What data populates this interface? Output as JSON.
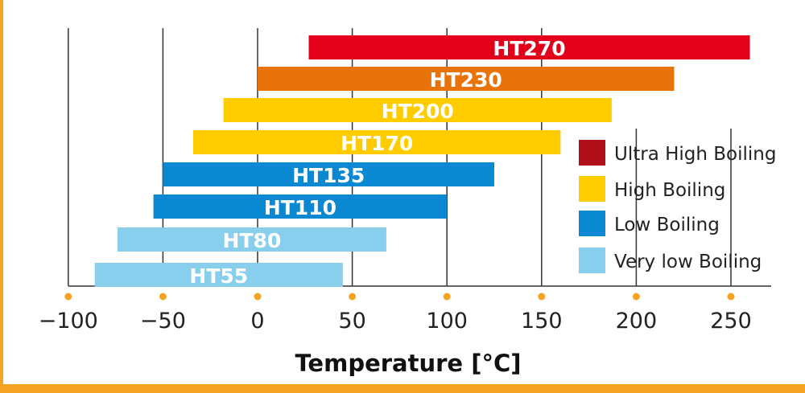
{
  "chart_data": {
    "type": "bar",
    "orientation": "horizontal-range",
    "title": "",
    "xlabel": "Temperature [°C]",
    "ylabel": "",
    "xlim": [
      -100,
      270
    ],
    "xticks": [
      -100,
      -50,
      0,
      50,
      100,
      150,
      200,
      250
    ],
    "xtick_labels": [
      "−100",
      "−50",
      "0",
      "50",
      "100",
      "150",
      "200",
      "250"
    ],
    "grid": "vertical",
    "legend_position": "right",
    "bars": [
      {
        "label": "HT270",
        "start": 27,
        "end": 260,
        "category": "Ultra High Boiling",
        "color": "#e2001a"
      },
      {
        "label": "HT230",
        "start": 0,
        "end": 220,
        "category": "Ultra High Boiling",
        "color": "#e8730a"
      },
      {
        "label": "HT200",
        "start": -18,
        "end": 187,
        "category": "High Boiling",
        "color": "#ffcc00"
      },
      {
        "label": "HT170",
        "start": -34,
        "end": 160,
        "category": "High Boiling",
        "color": "#ffcc00"
      },
      {
        "label": "HT135",
        "start": -50,
        "end": 125,
        "category": "Low Boiling",
        "color": "#0a88d2"
      },
      {
        "label": "HT110",
        "start": -55,
        "end": 100,
        "category": "Low Boiling",
        "color": "#0a88d2"
      },
      {
        "label": "HT80",
        "start": -74,
        "end": 68,
        "category": "Very low Boiling",
        "color": "#88cfee"
      },
      {
        "label": "HT55",
        "start": -86,
        "end": 45,
        "category": "Very low Boiling",
        "color": "#88cfee"
      }
    ],
    "legend": [
      {
        "name": "Ultra High Boiling",
        "color": "#b0101b"
      },
      {
        "name": "High Boiling",
        "color": "#ffcc00"
      },
      {
        "name": "Low Boiling",
        "color": "#0a88d2"
      },
      {
        "name": "Very low Boiling",
        "color": "#88cfee"
      }
    ],
    "accent_color": "#f5a323"
  }
}
